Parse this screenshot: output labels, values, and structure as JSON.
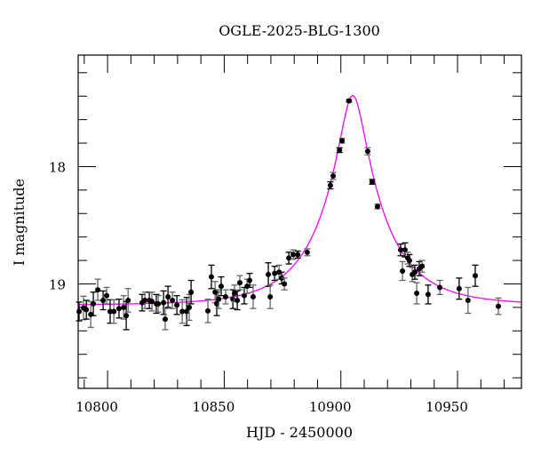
{
  "chart_data": {
    "type": "scatter",
    "title": "OGLE-2025-BLG-1300",
    "xlabel": "HJD - 2450000",
    "ylabel": "I magnitude",
    "xlim": [
      10787.4,
      10977.4
    ],
    "ylim": [
      19.89,
      17.05
    ],
    "y_inverted": true,
    "grid": false,
    "x_major_ticks": [
      10800,
      10850,
      10900,
      10950
    ],
    "x_tick_labels": [
      "10800",
      "10850",
      "10900",
      "10950"
    ],
    "x_minor_step": 10,
    "y_major_ticks": [
      18,
      19
    ],
    "y_tick_labels": [
      "18",
      "19"
    ],
    "y_minor_step": 0.2,
    "colors": {
      "points": "#000000",
      "errorbars_alt": "#666666",
      "model": "#ff00ff"
    },
    "series": [
      {
        "kind": "data-with-errorbars",
        "x": [
          10787.8,
          10789.7,
          10790.9,
          10792.8,
          10793.9,
          10795.8,
          10798.1,
          10799.6,
          10801.1,
          10802.7,
          10804.9,
          10806.9,
          10808.0,
          10808.8,
          10814.8,
          10816.0,
          10817.9,
          10819.0,
          10820.9,
          10821.7,
          10824.0,
          10824.7,
          10825.9,
          10827.8,
          10829.7,
          10832.0,
          10833.9,
          10835.0,
          10835.8,
          10843.0,
          10844.5,
          10846.1,
          10846.8,
          10847.6,
          10848.7,
          10850.6,
          10853.7,
          10854.4,
          10855.6,
          10856.7,
          10858.6,
          10859.8,
          10860.9,
          10862.4,
          10868.9,
          10869.7,
          10871.6,
          10873.5,
          10874.6,
          10875.8,
          10877.7,
          10879.6,
          10881.5,
          10885.6,
          10895.5,
          10896.7,
          10899.4,
          10900.5,
          10903.5,
          10911.5,
          10913.4,
          10915.7,
          10925.6,
          10926.4,
          10927.5,
          10928.7,
          10929.4,
          10930.6,
          10931.7,
          10932.5,
          10933.6,
          10934.8,
          10937.4,
          10942.4,
          10950.7,
          10954.5,
          10957.6,
          10967.5
        ],
        "y": [
          19.235,
          19.205,
          19.22,
          19.26,
          19.17,
          19.05,
          19.14,
          19.1,
          19.235,
          19.235,
          19.21,
          19.2,
          19.27,
          19.14,
          19.16,
          19.14,
          19.14,
          19.15,
          19.17,
          19.17,
          19.16,
          19.3,
          19.11,
          19.14,
          19.18,
          19.235,
          19.235,
          19.2,
          19.07,
          19.23,
          18.94,
          19.07,
          19.17,
          19.13,
          19.02,
          19.11,
          19.13,
          19.08,
          19.14,
          18.99,
          19.1,
          19.02,
          18.97,
          19.11,
          18.92,
          19.11,
          18.91,
          18.9,
          18.95,
          19.0,
          18.78,
          18.75,
          18.75,
          18.73,
          18.16,
          18.08,
          17.86,
          17.78,
          17.44,
          17.87,
          18.13,
          18.34,
          18.71,
          18.89,
          18.71,
          18.78,
          18.8,
          18.92,
          18.9,
          19.08,
          18.87,
          18.85,
          19.09,
          19.03,
          19.04,
          19.14,
          18.93,
          19.19
        ],
        "err": [
          0.08,
          0.1,
          0.08,
          0.11,
          0.1,
          0.09,
          0.08,
          0.07,
          0.1,
          0.1,
          0.08,
          0.1,
          0.12,
          0.1,
          0.07,
          0.07,
          0.07,
          0.08,
          0.08,
          0.07,
          0.1,
          0.09,
          0.09,
          0.07,
          0.08,
          0.1,
          0.12,
          0.11,
          0.1,
          0.1,
          0.1,
          0.09,
          0.1,
          0.08,
          0.08,
          0.06,
          0.08,
          0.07,
          0.08,
          0.06,
          0.07,
          0.06,
          0.06,
          0.1,
          0.1,
          0.1,
          0.06,
          0.06,
          0.05,
          0.05,
          0.05,
          0.04,
          0.03,
          0.03,
          0.03,
          0.03,
          0.02,
          0.02,
          0.01,
          0.03,
          0.02,
          0.02,
          0.05,
          0.08,
          0.06,
          0.05,
          0.05,
          0.06,
          0.06,
          0.09,
          0.06,
          0.05,
          0.08,
          0.06,
          0.09,
          0.11,
          0.09,
          0.07
        ]
      }
    ],
    "model": {
      "type": "paczynski",
      "t0": 10905.1,
      "u0": 0.196,
      "tE": 26.7,
      "baseline": 19.18
    }
  }
}
